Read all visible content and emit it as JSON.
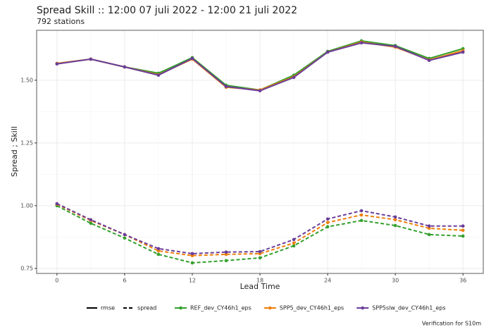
{
  "chart_data": {
    "type": "line",
    "title": "Spread Skill :: 12:00 07 juli 2022 - 12:00 21 juli 2022",
    "subtitle": "792 stations",
    "xlabel": "Lead Time",
    "ylabel": "Spread ; Skill",
    "caption": "Verification for S10m",
    "x": [
      0,
      3,
      6,
      9,
      12,
      15,
      18,
      21,
      24,
      27,
      30,
      33,
      36
    ],
    "xlim": [
      -1.8,
      37.8
    ],
    "xticks": [
      0,
      6,
      12,
      18,
      24,
      30,
      36
    ],
    "ylim": [
      0.73,
      1.699
    ],
    "yticks": [
      {
        "value": 0.75,
        "label": "0.75"
      },
      {
        "value": 1.0,
        "label": "1.00"
      },
      {
        "value": 1.25,
        "label": "1.25"
      },
      {
        "value": 1.5,
        "label": "1.50"
      }
    ],
    "grid": true,
    "legend": "bottom",
    "linetypes": [
      "rmse",
      "spread"
    ],
    "series": [
      {
        "name": "REF_dev_CY46h1_eps",
        "color": "#33a02c",
        "rmse": [
          1.567,
          1.584,
          1.553,
          1.528,
          1.59,
          1.48,
          1.461,
          1.52,
          1.615,
          1.657,
          1.638,
          1.587,
          1.626
        ],
        "spread": [
          1.0,
          0.93,
          0.871,
          0.806,
          0.772,
          0.781,
          0.792,
          0.84,
          0.916,
          0.941,
          0.921,
          0.885,
          0.879
        ]
      },
      {
        "name": "SPP5_dev_CY46h1_eps",
        "color": "#f07f0a",
        "rmse": [
          1.567,
          1.584,
          1.553,
          1.522,
          1.584,
          1.472,
          1.461,
          1.514,
          1.612,
          1.652,
          1.632,
          1.581,
          1.618
        ],
        "spread": [
          1.006,
          0.941,
          0.885,
          0.82,
          0.801,
          0.806,
          0.809,
          0.851,
          0.933,
          0.963,
          0.944,
          0.91,
          0.902
        ]
      },
      {
        "name": "SPP5slw_dev_CY46h1_eps",
        "color": "#6a3d9a",
        "rmse": [
          1.565,
          1.584,
          1.553,
          1.52,
          1.587,
          1.475,
          1.458,
          1.511,
          1.612,
          1.649,
          1.635,
          1.579,
          1.612
        ],
        "spread": [
          1.008,
          0.944,
          0.885,
          0.829,
          0.809,
          0.815,
          0.817,
          0.865,
          0.947,
          0.98,
          0.955,
          0.919,
          0.919
        ]
      }
    ]
  }
}
